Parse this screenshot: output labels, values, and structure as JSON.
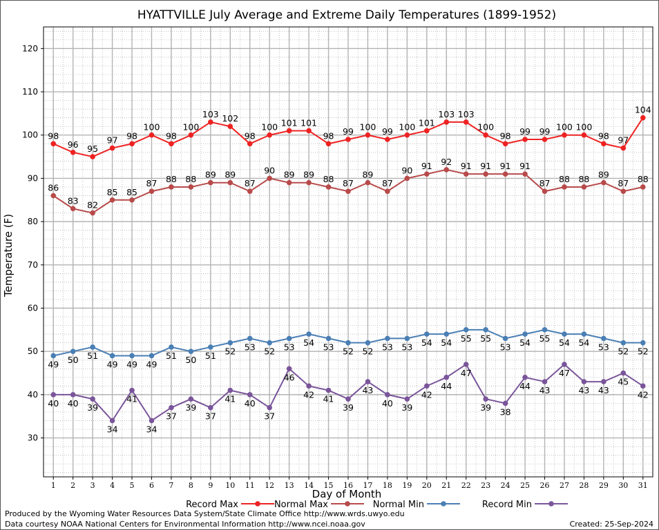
{
  "chart_data": {
    "type": "line",
    "title": "HYATTVILLE July Average and Extreme Daily Temperatures (1899-1952)",
    "xlabel": "Day of Month",
    "ylabel": "Temperature (F)",
    "xlim": [
      0.5,
      31.5
    ],
    "ylim": [
      21,
      125
    ],
    "yticks": [
      30,
      40,
      50,
      60,
      70,
      80,
      90,
      100,
      110,
      120
    ],
    "grid": true,
    "legend_position": "bottom",
    "x": [
      1,
      2,
      3,
      4,
      5,
      6,
      7,
      8,
      9,
      10,
      11,
      12,
      13,
      14,
      15,
      16,
      17,
      18,
      19,
      20,
      21,
      22,
      23,
      24,
      25,
      26,
      27,
      28,
      29,
      30,
      31
    ],
    "series": [
      {
        "name": "Record Max",
        "color": "#ee2222",
        "label_position": "above",
        "values": [
          98,
          96,
          95,
          97,
          98,
          100,
          98,
          100,
          103,
          102,
          98,
          100,
          101,
          101,
          98,
          99,
          100,
          99,
          100,
          101,
          103,
          103,
          100,
          98,
          99,
          99,
          100,
          100,
          98,
          97,
          104
        ]
      },
      {
        "name": "Normal Max",
        "color": "#b84a4a",
        "label_position": "above",
        "values": [
          86,
          83,
          82,
          85,
          85,
          87,
          88,
          88,
          89,
          89,
          87,
          90,
          89,
          89,
          88,
          87,
          89,
          87,
          90,
          91,
          92,
          91,
          91,
          91,
          91,
          87,
          88,
          88,
          89,
          87,
          88
        ]
      },
      {
        "name": "Normal Min",
        "color": "#4a7fb5",
        "label_position": "below",
        "values": [
          49,
          50,
          51,
          49,
          49,
          49,
          51,
          50,
          51,
          52,
          53,
          52,
          53,
          54,
          53,
          52,
          52,
          53,
          53,
          54,
          54,
          55,
          55,
          53,
          54,
          55,
          54,
          54,
          53,
          52,
          52
        ]
      },
      {
        "name": "Record Min",
        "color": "#7a559a",
        "label_position": "below",
        "values": [
          40,
          40,
          39,
          34,
          41,
          34,
          37,
          39,
          37,
          41,
          40,
          37,
          46,
          42,
          41,
          39,
          43,
          40,
          39,
          42,
          44,
          47,
          39,
          38,
          44,
          43,
          47,
          43,
          43,
          45,
          42
        ]
      }
    ]
  },
  "footer": {
    "line1": "Produced by the Wyoming Water Resources Data System/State Climate Office http://www.wrds.uwyo.edu",
    "line2": "Data courtesy NOAA National Centers for Environmental Information http://www.ncei.noaa.gov",
    "created": "Created:  25-Sep-2024"
  }
}
